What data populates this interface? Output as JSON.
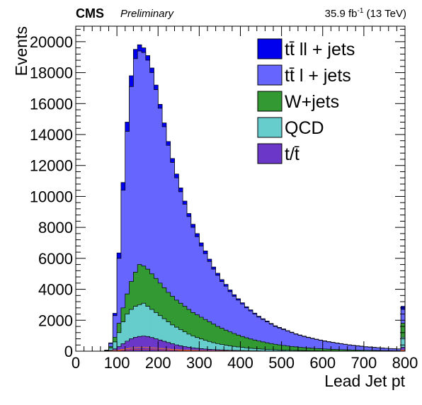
{
  "header": {
    "experiment": "CMS",
    "status": "Preliminary",
    "luminosity": "35.9 fb",
    "luminosity_exponent": "-1",
    "energy": "(13 TeV)"
  },
  "chart_data": {
    "type": "area",
    "stacked": true,
    "histogram": true,
    "xlabel": "Lead Jet pt",
    "ylabel": "Events",
    "xlim": [
      0,
      800
    ],
    "ylim": [
      0,
      21000
    ],
    "bin_width": 10,
    "x_ticks": [
      0,
      100,
      200,
      300,
      400,
      500,
      600,
      700,
      800
    ],
    "y_ticks": [
      0,
      2000,
      4000,
      6000,
      8000,
      10000,
      12000,
      14000,
      16000,
      18000,
      20000
    ],
    "grid": false,
    "legend_position": "top-right",
    "series": [
      {
        "name": "t/t̄",
        "color": "#6a37c8",
        "cumulative_top": [
          0,
          0,
          0,
          0,
          0,
          0,
          0,
          10,
          60,
          150,
          300,
          480,
          650,
          800,
          900,
          950,
          980,
          950,
          880,
          800,
          720,
          640,
          560,
          480,
          410,
          350,
          300,
          260,
          220,
          190,
          165,
          140,
          120,
          105,
          92,
          80,
          70,
          60,
          52,
          45,
          40,
          35,
          30,
          26,
          22,
          19,
          17,
          15,
          13,
          11,
          10,
          9,
          8,
          7,
          6,
          5,
          5,
          4,
          4,
          3,
          3,
          3,
          2,
          2,
          2,
          2,
          2,
          1,
          1,
          1,
          1,
          1,
          1,
          1,
          1,
          1,
          1,
          1,
          1,
          250
        ]
      },
      {
        "name": "QCD",
        "color": "#66cccc",
        "cumulative_top": [
          0,
          0,
          0,
          0,
          0,
          0,
          0,
          30,
          200,
          600,
          1200,
          1900,
          2400,
          2700,
          2900,
          3000,
          3100,
          2900,
          2700,
          2500,
          2300,
          2100,
          1900,
          1700,
          1550,
          1400,
          1250,
          1100,
          980,
          880,
          790,
          700,
          620,
          550,
          490,
          440,
          390,
          350,
          310,
          275,
          245,
          215,
          190,
          170,
          150,
          130,
          115,
          100,
          90,
          80,
          70,
          60,
          55,
          50,
          45,
          40,
          35,
          32,
          29,
          26,
          23,
          21,
          19,
          17,
          15,
          14,
          13,
          12,
          11,
          10,
          9,
          8,
          7,
          6,
          5,
          5,
          4,
          4,
          4,
          900
        ]
      },
      {
        "name": "W+jets",
        "color": "#339933",
        "cumulative_top": [
          0,
          0,
          0,
          0,
          0,
          0,
          0,
          40,
          300,
          900,
          1800,
          2800,
          3700,
          4500,
          5100,
          5600,
          5500,
          5300,
          5000,
          4700,
          4400,
          4100,
          3800,
          3550,
          3300,
          3100,
          2900,
          2700,
          2500,
          2350,
          2200,
          2050,
          1900,
          1750,
          1600,
          1480,
          1360,
          1250,
          1140,
          1040,
          950,
          870,
          790,
          720,
          660,
          600,
          545,
          495,
          450,
          410,
          370,
          335,
          305,
          280,
          255,
          230,
          210,
          190,
          175,
          160,
          145,
          130,
          120,
          110,
          100,
          92,
          85,
          78,
          72,
          66,
          60,
          55,
          50,
          46,
          42,
          38,
          35,
          32,
          30,
          1800
        ]
      },
      {
        "name": "tt̄ l + jets",
        "color": "#6666ff",
        "cumulative_top": [
          0,
          0,
          0,
          0,
          0,
          0,
          0,
          60,
          500,
          2300,
          6000,
          10400,
          14200,
          17100,
          18900,
          19400,
          19300,
          18800,
          18000,
          16900,
          15700,
          14500,
          13300,
          12200,
          11200,
          10300,
          9500,
          8700,
          8000,
          7400,
          6800,
          6300,
          5800,
          5300,
          4900,
          4500,
          4200,
          3850,
          3550,
          3300,
          3050,
          2800,
          2600,
          2400,
          2200,
          2050,
          1900,
          1750,
          1600,
          1500,
          1400,
          1300,
          1200,
          1100,
          1020,
          950,
          880,
          820,
          760,
          700,
          650,
          600,
          560,
          520,
          480,
          440,
          400,
          370,
          340,
          310,
          280,
          260,
          240,
          220,
          200,
          180,
          165,
          150,
          140,
          2700
        ]
      },
      {
        "name": "tt̄ ll + jets",
        "color": "#0000ee",
        "cumulative_top": [
          0,
          0,
          0,
          0,
          0,
          0,
          0,
          70,
          540,
          2450,
          6350,
          10900,
          14800,
          17800,
          19500,
          19800,
          19600,
          19100,
          18300,
          17200,
          15950,
          14750,
          13550,
          12450,
          11450,
          10550,
          9700,
          8900,
          8200,
          7600,
          7000,
          6480,
          5950,
          5440,
          5040,
          4630,
          4320,
          3960,
          3650,
          3390,
          3130,
          2870,
          2670,
          2460,
          2260,
          2100,
          1950,
          1790,
          1640,
          1540,
          1440,
          1330,
          1230,
          1130,
          1050,
          975,
          905,
          840,
          780,
          720,
          670,
          620,
          575,
          535,
          495,
          455,
          415,
          385,
          355,
          325,
          295,
          275,
          250,
          230,
          210,
          190,
          175,
          160,
          150,
          2900
        ]
      }
    ]
  }
}
